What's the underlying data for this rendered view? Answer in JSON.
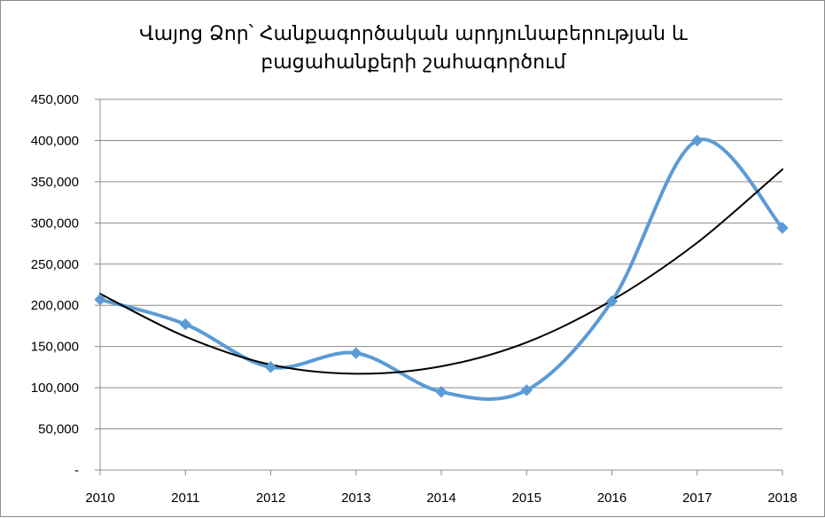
{
  "chart_data": {
    "type": "line",
    "title_lines": [
      "Վայոց Ձոր՝ Հանքագործական արդյունաբերության և",
      "բացահանքերի շահագործում"
    ],
    "xlabel": "",
    "ylabel": "",
    "categories": [
      "2010",
      "2011",
      "2012",
      "2013",
      "2014",
      "2015",
      "2016",
      "2017",
      "2018"
    ],
    "y_tick_labels": [
      "-",
      "50,000",
      "100,000",
      "150,000",
      "200,000",
      "250,000",
      "300,000",
      "350,000",
      "400,000",
      "450,000"
    ],
    "ylim": [
      0,
      450000
    ],
    "grid": true,
    "legend": "none",
    "series": [
      {
        "values": [
          207000,
          177000,
          125000,
          142000,
          95000,
          97000,
          205000,
          400000,
          294000
        ],
        "color": "#5b9bd5",
        "marker": "diamond",
        "smooth": true
      },
      {
        "values": [
          214000,
          162000,
          128000,
          117000,
          126000,
          155000,
          206000,
          276000,
          365000
        ],
        "color": "#000000",
        "marker": "none",
        "smooth": true,
        "trendline": true
      }
    ]
  }
}
